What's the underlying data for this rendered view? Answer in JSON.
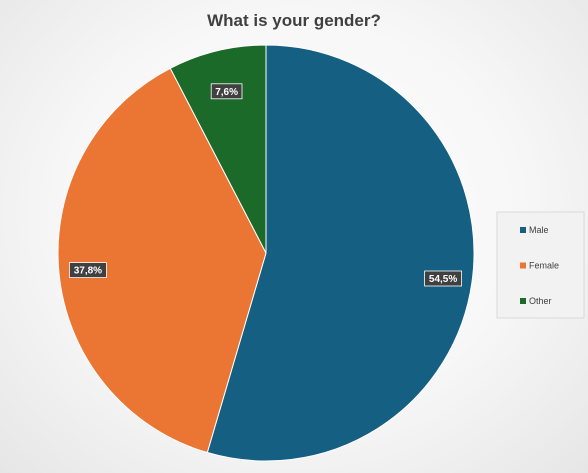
{
  "chart_data": {
    "type": "pie",
    "title": "What is your gender?",
    "categories": [
      "Male",
      "Female",
      "Other"
    ],
    "values": [
      54.5,
      37.8,
      7.6
    ],
    "data_labels": [
      "54,5%",
      "37,8%",
      "7,6%"
    ],
    "colors": [
      "#155f83",
      "#eb7634",
      "#1b6a29"
    ],
    "start": "12 o'clock, clockwise",
    "legend": {
      "position": "right",
      "items": [
        "Male",
        "Female",
        "Other"
      ]
    }
  }
}
